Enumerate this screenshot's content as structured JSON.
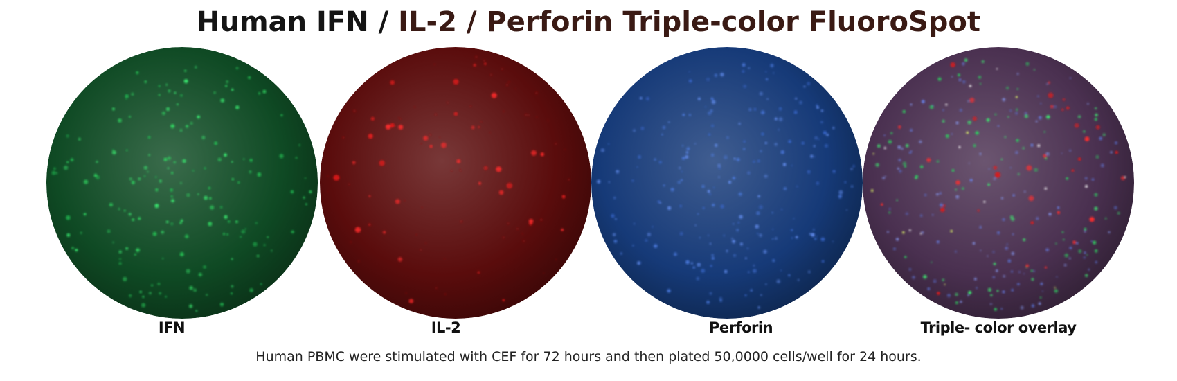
{
  "title": {
    "part1": "Human IFN / ",
    "part2": "IL-2 / Perforin Triple-color FluoroSpot"
  },
  "panels": [
    {
      "label": "IFN",
      "channel": "green",
      "tint": "#0f4a24",
      "spot_color": "#35e06a"
    },
    {
      "label": "IL-2",
      "channel": "red",
      "tint": "#5a0c0c",
      "spot_color": "#ff2a2a"
    },
    {
      "label": "Perforin",
      "channel": "blue",
      "tint": "#163a78",
      "spot_color": "#5b8cff"
    },
    {
      "label": "Triple- color overlay",
      "channel": "overlay",
      "tint": "#4a3050",
      "spot_color": "#ffffff"
    }
  ],
  "caption": "Human PBMC were stimulated with CEF for 72 hours and then plated 50,0000 cells/well for 24 hours."
}
